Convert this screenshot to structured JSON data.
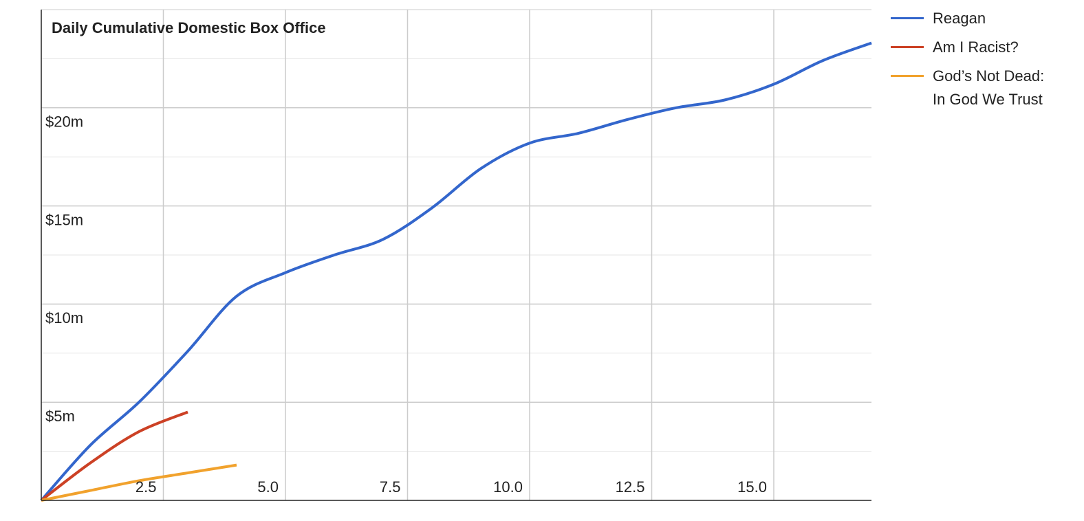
{
  "chart_data": {
    "type": "line",
    "title": "Daily Cumulative Domestic Box Office",
    "x": [
      0,
      1,
      2,
      3,
      4,
      5,
      6,
      7,
      8,
      9,
      10,
      11,
      12,
      13,
      14,
      15,
      16,
      17
    ],
    "series": [
      {
        "name": "Reagan",
        "color": "#3366cc",
        "values": [
          0,
          2.8,
          5.0,
          7.6,
          10.4,
          11.6,
          12.5,
          13.3,
          14.9,
          16.9,
          18.2,
          18.7,
          19.4,
          20.0,
          20.4,
          21.2,
          22.4,
          23.3
        ]
      },
      {
        "name": "Am I Racist?",
        "color": "#cc4125",
        "values": [
          0,
          1.9,
          3.5,
          4.5,
          null,
          null,
          null,
          null,
          null,
          null,
          null,
          null,
          null,
          null,
          null,
          null,
          null,
          null
        ]
      },
      {
        "name": "God’s Not Dead: In God We Trust",
        "color": "#f1a22d",
        "values": [
          0,
          0.5,
          1.0,
          1.4,
          1.8,
          null,
          null,
          null,
          null,
          null,
          null,
          null,
          null,
          null,
          null,
          null,
          null,
          null
        ]
      }
    ],
    "xlim": [
      0,
      17
    ],
    "ylim": [
      0,
      25
    ],
    "xticks": [
      2.5,
      {
        "value": 5,
        "label": "5.0"
      },
      7.5,
      {
        "value": 10,
        "label": "10.0"
      },
      12.5,
      {
        "value": 15,
        "label": "15.0"
      }
    ],
    "yticks": [
      {
        "value": 5,
        "label": "$5m"
      },
      {
        "value": 10,
        "label": "$10m"
      },
      {
        "value": 15,
        "label": "$15m"
      },
      {
        "value": 20,
        "label": "$20m"
      }
    ],
    "grid": true,
    "minor_grid": true,
    "legend": "right"
  }
}
